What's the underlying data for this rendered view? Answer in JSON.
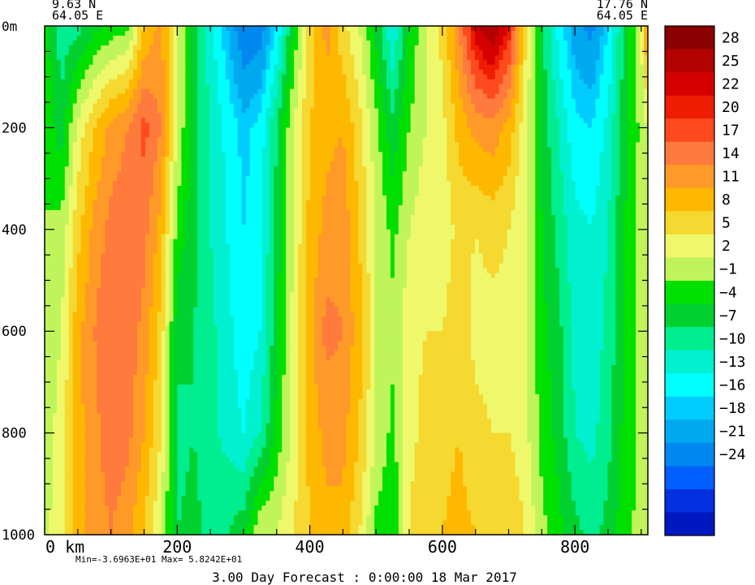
{
  "corner_left": {
    "lat": "9.63 N",
    "lon": "64.05 E"
  },
  "corner_right": {
    "lat": "17.76 N",
    "lon": "64.05 E"
  },
  "min_max_text": "Min=-3.6963E+01   Max= 5.8242E+01",
  "footer": "3.00 Day Forecast :  0:00:00  18 Mar 2017",
  "chart_data": {
    "type": "heatmap",
    "title": "",
    "xlabel": "",
    "ylabel": "",
    "x_unit": "km",
    "y_unit": "m",
    "xlim": [
      0,
      910
    ],
    "ylim": [
      1000,
      0
    ],
    "xticks": [
      0,
      200,
      400,
      600,
      800
    ],
    "xtick_labels": [
      "0 km",
      "200",
      "400",
      "600",
      "800"
    ],
    "yticks": [
      0,
      200,
      400,
      600,
      800,
      1000
    ],
    "ytick_labels": [
      "0m",
      "200",
      "400",
      "600",
      "800",
      "1000"
    ],
    "colorbar": {
      "levels": [
        28,
        25,
        22,
        20,
        17,
        14,
        11,
        8,
        5,
        2,
        -1,
        -4,
        -7,
        -10,
        -13,
        -16,
        -18,
        -21,
        -24
      ],
      "colors": [
        "#8b0000",
        "#b30000",
        "#d40000",
        "#ee1c00",
        "#ff4a1e",
        "#ff7a3d",
        "#ff9a28",
        "#ffb800",
        "#f5d830",
        "#eef86a",
        "#bff55a",
        "#00e000",
        "#00d030",
        "#00ee90",
        "#00f0d0",
        "#00ffff",
        "#00ccff",
        "#00a8f0",
        "#0088f0",
        "#0060ff",
        "#0030e0",
        "#0018c0"
      ]
    },
    "profile_depths": [
      0,
      200,
      400,
      600,
      800,
      1000
    ],
    "profiles": [
      {
        "x": 0,
        "v": [
          -2,
          -1,
          -1,
          0,
          1,
          1
        ]
      },
      {
        "x": 25,
        "v": [
          -9,
          -6,
          0,
          2,
          3,
          4
        ]
      },
      {
        "x": 50,
        "v": [
          -8,
          3,
          7,
          10,
          10,
          10
        ]
      },
      {
        "x": 75,
        "v": [
          -5,
          8,
          12,
          14,
          13,
          12
        ]
      },
      {
        "x": 100,
        "v": [
          -3,
          12,
          15,
          17,
          16,
          14
        ]
      },
      {
        "x": 125,
        "v": [
          -2,
          14,
          16,
          16,
          15,
          12
        ]
      },
      {
        "x": 150,
        "v": [
          8,
          18,
          15,
          13,
          11,
          8
        ]
      },
      {
        "x": 175,
        "v": [
          12,
          14,
          10,
          7,
          5,
          2
        ]
      },
      {
        "x": 200,
        "v": [
          2,
          2,
          -2,
          -6,
          -8,
          -7
        ]
      },
      {
        "x": 225,
        "v": [
          -6,
          -6,
          -6,
          -7,
          -7,
          -6
        ]
      },
      {
        "x": 250,
        "v": [
          -12,
          -10,
          -10,
          -9,
          -9,
          -8
        ]
      },
      {
        "x": 275,
        "v": [
          -18,
          -14,
          -13,
          -12,
          -11,
          -7
        ]
      },
      {
        "x": 300,
        "v": [
          -24,
          -17,
          -16,
          -15,
          -13,
          -5
        ]
      },
      {
        "x": 325,
        "v": [
          -23,
          -15,
          -14,
          -13,
          -10,
          2
        ]
      },
      {
        "x": 350,
        "v": [
          -16,
          -7,
          -6,
          -5,
          -3,
          2
        ]
      },
      {
        "x": 375,
        "v": [
          -4,
          2,
          2,
          3,
          3,
          5
        ]
      },
      {
        "x": 400,
        "v": [
          6,
          8,
          9,
          10,
          9,
          8
        ]
      },
      {
        "x": 425,
        "v": [
          12,
          10,
          12,
          15,
          12,
          10
        ]
      },
      {
        "x": 450,
        "v": [
          6,
          11,
          13,
          14,
          12,
          10
        ]
      },
      {
        "x": 475,
        "v": [
          2,
          6,
          8,
          9,
          8,
          5
        ]
      },
      {
        "x": 500,
        "v": [
          -5,
          0,
          2,
          2,
          2,
          -2
        ]
      },
      {
        "x": 525,
        "v": [
          -13,
          -6,
          -2,
          0,
          -2,
          -4
        ]
      },
      {
        "x": 550,
        "v": [
          -4,
          -1,
          2,
          4,
          4,
          5
        ]
      },
      {
        "x": 575,
        "v": [
          2,
          2,
          4,
          5,
          6,
          8
        ]
      },
      {
        "x": 600,
        "v": [
          6,
          4,
          3,
          5,
          7,
          8
        ]
      },
      {
        "x": 625,
        "v": [
          14,
          9,
          6,
          7,
          8,
          9
        ]
      },
      {
        "x": 650,
        "v": [
          24,
          12,
          5,
          4,
          6,
          8
        ]
      },
      {
        "x": 675,
        "v": [
          28,
          13,
          6,
          4,
          5,
          8
        ]
      },
      {
        "x": 700,
        "v": [
          22,
          10,
          5,
          4,
          5,
          8
        ]
      },
      {
        "x": 725,
        "v": [
          6,
          3,
          2,
          2,
          3,
          5
        ]
      },
      {
        "x": 750,
        "v": [
          -6,
          -5,
          -4,
          -3,
          -2,
          0
        ]
      },
      {
        "x": 775,
        "v": [
          -14,
          -10,
          -8,
          -6,
          -5,
          -3
        ]
      },
      {
        "x": 800,
        "v": [
          -20,
          -15,
          -12,
          -11,
          -10,
          -6
        ]
      },
      {
        "x": 825,
        "v": [
          -22,
          -16,
          -13,
          -12,
          -11,
          -8
        ]
      },
      {
        "x": 850,
        "v": [
          -16,
          -12,
          -10,
          -9,
          -8,
          -6
        ]
      },
      {
        "x": 875,
        "v": [
          -6,
          -5,
          -4,
          -4,
          -3,
          -2
        ]
      },
      {
        "x": 900,
        "v": [
          2,
          0,
          0,
          0,
          0,
          0
        ]
      },
      {
        "x": 910,
        "v": [
          14,
          2,
          1,
          1,
          1,
          1
        ]
      }
    ]
  }
}
